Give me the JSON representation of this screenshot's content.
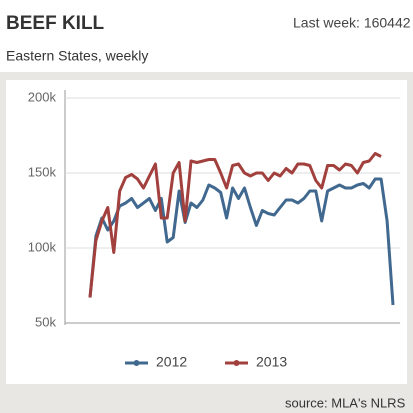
{
  "header": {
    "title": "BEEF KILL",
    "last_week": "Last week: 160442",
    "subtitle": "Eastern States, weekly"
  },
  "footer": {
    "source": "source: MLA's NLRS"
  },
  "chart_data": {
    "type": "line",
    "categories": [
      null,
      null,
      null,
      null,
      null,
      null,
      null,
      null,
      null,
      null,
      null,
      null,
      null,
      null,
      null,
      null,
      null,
      null,
      null,
      null,
      null,
      null,
      null,
      null,
      null,
      null,
      null,
      null,
      null,
      null,
      null,
      null,
      null,
      null,
      null,
      null,
      null,
      null,
      null,
      null,
      null,
      null,
      null,
      null,
      null,
      null,
      null,
      null,
      null,
      null,
      null,
      null
    ],
    "series": [
      {
        "name": "2012",
        "color": "#41698f",
        "values": [
          67000,
          108000,
          120000,
          112000,
          118000,
          128000,
          130000,
          133000,
          127000,
          130000,
          133000,
          125000,
          133000,
          104000,
          107000,
          138000,
          117000,
          130000,
          127000,
          132000,
          142000,
          140000,
          137000,
          120000,
          140000,
          133000,
          140000,
          127000,
          115000,
          125000,
          123000,
          122000,
          127000,
          132000,
          132000,
          130000,
          133000,
          138000,
          138000,
          118000,
          138000,
          140000,
          142000,
          140000,
          140000,
          142000,
          143000,
          140000,
          146000,
          146000,
          118000,
          62000
        ]
      },
      {
        "name": "2013",
        "color": "#a2403d",
        "values": [
          67000,
          105000,
          118000,
          127000,
          97000,
          138000,
          147000,
          149000,
          146000,
          140000,
          148000,
          156000,
          120000,
          120000,
          150000,
          157000,
          118000,
          158000,
          157000,
          158000,
          159000,
          159000,
          150000,
          140000,
          155000,
          156000,
          150000,
          148000,
          150000,
          150000,
          145000,
          150000,
          148000,
          153000,
          150000,
          156000,
          156000,
          155000,
          145000,
          140000,
          155000,
          155000,
          152000,
          156000,
          155000,
          150000,
          157000,
          158000,
          163000,
          161000,
          null,
          null
        ]
      }
    ],
    "ylim": [
      50000,
      200000
    ],
    "yticks": [
      {
        "value": 50000,
        "label": "50k"
      },
      {
        "value": 100000,
        "label": "100k"
      },
      {
        "value": 150000,
        "label": "150k"
      },
      {
        "value": 200000,
        "label": "200k"
      }
    ],
    "grid": true,
    "legend": "bottom"
  }
}
